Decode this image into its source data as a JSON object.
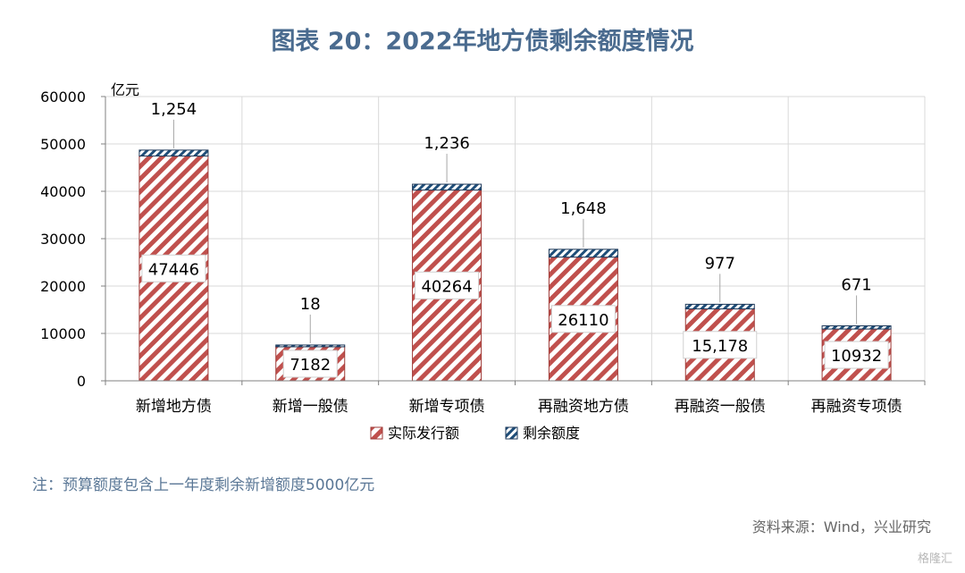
{
  "title": "图表 20：2022年地方债剩余额度情况",
  "note": "注：预算额度包含上一年度剩余新增额度5000亿元",
  "source": "资料来源：Wind，兴业研究",
  "watermark": "格隆汇",
  "colors": {
    "actual": "#c0504d",
    "remaining": "#1f4e79",
    "grid": "#d9d9d9",
    "axis": "#808080"
  },
  "chart_data": {
    "type": "bar",
    "stacked": true,
    "unit_label": "亿元",
    "ylim": [
      0,
      60000
    ],
    "yticks": [
      "0",
      "10000",
      "20000",
      "30000",
      "40000",
      "50000",
      "60000"
    ],
    "ytick_values": [
      0,
      10000,
      20000,
      30000,
      40000,
      50000,
      60000
    ],
    "grid": true,
    "legend_position": "bottom",
    "categories": [
      "新增地方债",
      "新增一般债",
      "新增专项债",
      "再融资地方债",
      "再融资一般债",
      "再融资专项债"
    ],
    "series": [
      {
        "name": "实际发行额",
        "values": [
          47446,
          7182,
          40264,
          26110,
          15178,
          10932
        ],
        "labels": [
          "47446",
          "7182",
          "40264",
          "26110",
          "15,178",
          "10932"
        ]
      },
      {
        "name": "剩余额度",
        "values": [
          1254,
          18,
          1236,
          1648,
          977,
          671
        ],
        "labels": [
          "1,254",
          "18",
          "1,236",
          "1,648",
          "977",
          "671"
        ]
      }
    ]
  }
}
